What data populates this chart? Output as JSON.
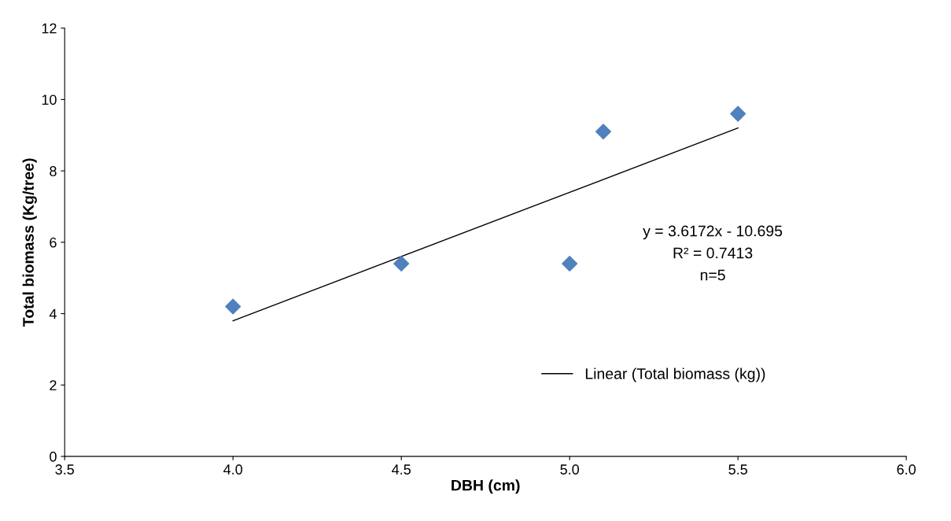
{
  "chart_data": {
    "type": "scatter",
    "xlabel": "DBH (cm)",
    "ylabel": "Total biomass (Kg/tree)",
    "series": [
      {
        "color": "#4f81bd",
        "marker": "diamond",
        "x": [
          4.0,
          4.5,
          5.0,
          5.1,
          5.5
        ],
        "values": [
          4.2,
          5.4,
          5.4,
          9.1,
          9.6
        ]
      },
      {
        "type": "line",
        "name": "Linear (Total biomass (kg))",
        "color": "#000000",
        "marker": "none",
        "line_style": "solid",
        "x": [
          4.0,
          5.5
        ],
        "values": [
          3.8,
          9.2
        ]
      }
    ],
    "xlim": [
      3.5,
      6.0
    ],
    "xticks": [
      {
        "value": 3.5,
        "label": "3.5"
      },
      {
        "value": 4,
        "label": "4.0"
      },
      {
        "value": 4.5,
        "label": "4.5"
      },
      {
        "value": 5,
        "label": "5.0"
      },
      {
        "value": 5.5,
        "label": "5.5"
      },
      {
        "value": 6,
        "label": "6.0"
      }
    ],
    "ylim": [
      0,
      12
    ],
    "yticks": [
      0,
      2,
      4,
      6,
      8,
      10,
      12
    ],
    "annotations": [
      "y = 3.6172x - 10.695\nR² = 0.7413\nn=5"
    ],
    "legend": "bottom",
    "grid": false
  }
}
